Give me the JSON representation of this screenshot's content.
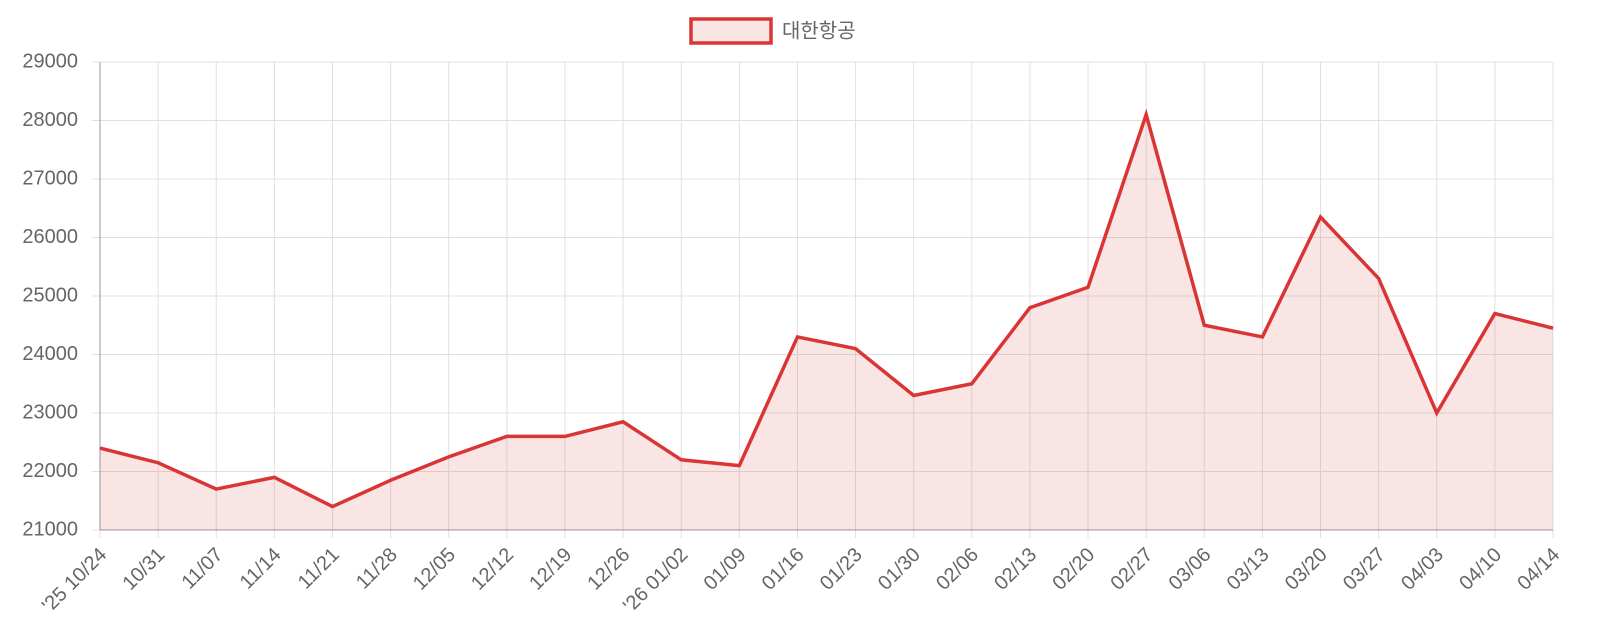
{
  "chart_data": {
    "type": "line",
    "categories": [
      "'25 10/24",
      "10/31",
      "11/07",
      "11/14",
      "11/21",
      "11/28",
      "12/05",
      "12/12",
      "12/19",
      "12/26",
      "'26 01/02",
      "01/09",
      "01/16",
      "01/23",
      "01/30",
      "02/06",
      "02/13",
      "02/20",
      "02/27",
      "03/06",
      "03/13",
      "03/20",
      "03/27",
      "04/03",
      "04/10",
      "04/14"
    ],
    "series": [
      {
        "name": "대한항공",
        "color": "#d93535",
        "values": [
          22400,
          22150,
          21700,
          21900,
          21400,
          21850,
          22250,
          22600,
          22600,
          22850,
          22200,
          22100,
          24300,
          24100,
          23300,
          23500,
          24800,
          25150,
          28100,
          24500,
          24300,
          26350,
          25300,
          23000,
          24700,
          24450
        ]
      }
    ],
    "ylim": [
      21000,
      29000
    ],
    "yticks": [
      21000,
      22000,
      23000,
      24000,
      25000,
      26000,
      27000,
      28000,
      29000
    ],
    "grid": true,
    "fill": true,
    "legend": "top"
  }
}
